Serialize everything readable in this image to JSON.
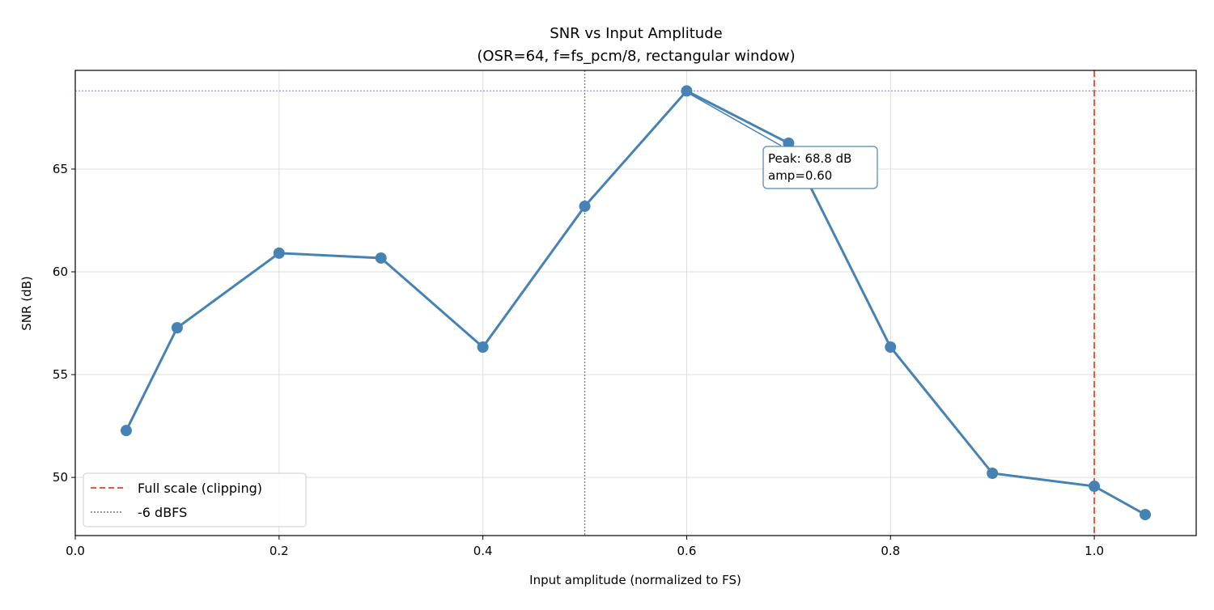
{
  "chart_data": {
    "type": "line",
    "title": "SNR vs Input Amplitude",
    "subtitle": "(OSR=64, f=fs_pcm/8, rectangular window)",
    "xlabel": "Input amplitude (normalized to FS)",
    "ylabel": "SNR (dB)",
    "xlim": [
      0,
      1.1
    ],
    "ylim": [
      47.17,
      69.8
    ],
    "xticks": [
      "0.0",
      "0.2",
      "0.4",
      "0.6",
      "0.8",
      "1.0"
    ],
    "yticks": [
      "50",
      "55",
      "60",
      "65"
    ],
    "grid": true,
    "legend_position": "lower-left",
    "series": [
      {
        "x": [
          0.05,
          0.1,
          0.2,
          0.3,
          0.4,
          0.5,
          0.6,
          0.7,
          0.8,
          0.9,
          1.0,
          1.05
        ],
        "values": [
          52.28,
          57.28,
          60.91,
          60.67,
          56.34,
          63.19,
          68.8,
          66.26,
          56.34,
          50.2,
          49.57,
          48.19
        ],
        "color": "#4682b4"
      }
    ],
    "reference_lines": [
      {
        "label": "Full scale (clipping)",
        "orientation": "vertical",
        "x": 1.0,
        "color": "#e8553e",
        "style": "dashed"
      },
      {
        "label": "-6 dBFS",
        "orientation": "vertical",
        "x": 0.5,
        "color": "#777777",
        "style": "dotted"
      },
      {
        "orientation": "horizontal",
        "y": 68.8,
        "color": "#9a94e0",
        "style": "dotted"
      }
    ],
    "annotation": {
      "lines": [
        "Peak: 68.8 dB",
        "amp=0.60"
      ],
      "x": 0.6,
      "y": 68.8
    }
  }
}
